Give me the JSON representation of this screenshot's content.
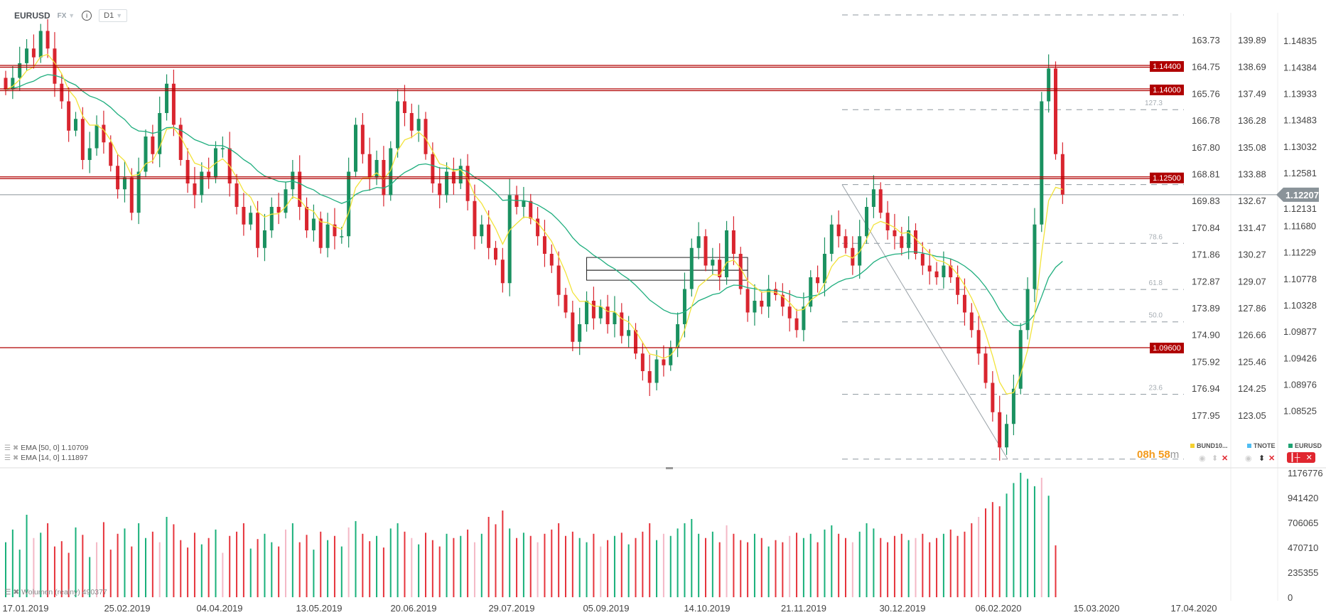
{
  "header": {
    "symbol": "EURUSD",
    "market": "FX",
    "timeframe": "D1"
  },
  "indicators": [
    {
      "label": "EMA [50, 0] 1.10709",
      "color": "#1fae7e",
      "period": 50
    },
    {
      "label": "EMA [14, 0] 1.11897",
      "color": "#f2e33a",
      "period": 14
    }
  ],
  "volume_label": "Wolumen (realny) 490377",
  "countdown": {
    "hours": "08h",
    "minutes": "58",
    "minutes_suffix": "m"
  },
  "legend": [
    {
      "label": "BUND10...",
      "color": "#f5d130"
    },
    {
      "label": "TNOTE",
      "color": "#4fbdf2"
    },
    {
      "label": "EURUSD",
      "color": "#1fa373"
    }
  ],
  "colors": {
    "up": "#1a9160",
    "down": "#d9252f",
    "level": "#b00000",
    "current": "#8a9399"
  },
  "chart_data": {
    "type": "candlestick",
    "symbol": "EURUSD",
    "current_price": "1.12207",
    "levels": [
      {
        "price": 1.144,
        "label": "1.14400",
        "strong": true
      },
      {
        "price": 1.14,
        "label": "1.14000",
        "strong": true
      },
      {
        "price": 1.125,
        "label": "1.12500",
        "strong": true
      },
      {
        "price": 1.096,
        "label": "1.09600",
        "strong": false
      }
    ],
    "fibonacci": {
      "low": 1.077,
      "high": 1.1238,
      "levels": [
        {
          "ratio": 161.8,
          "label": ""
        },
        {
          "ratio": 127.3,
          "label": "127.3"
        },
        {
          "ratio": 100,
          "label": ""
        },
        {
          "ratio": 78.6,
          "label": "78.6"
        },
        {
          "ratio": 61.8,
          "label": "61.8"
        },
        {
          "ratio": 50.0,
          "label": "50.0"
        },
        {
          "ratio": 23.6,
          "label": "23.6"
        },
        {
          "ratio": 0,
          "label": ""
        }
      ]
    },
    "box": {
      "from_index": 83,
      "to_index": 106,
      "top": 1.1092,
      "bottom": 1.1075
    },
    "closes": [
      1.14,
      1.142,
      1.1445,
      1.147,
      1.1455,
      1.15,
      1.147,
      1.141,
      1.138,
      1.133,
      1.135,
      1.128,
      1.13,
      1.134,
      1.131,
      1.127,
      1.123,
      1.125,
      1.119,
      1.126,
      1.132,
      1.129,
      1.136,
      1.141,
      1.134,
      1.128,
      1.124,
      1.122,
      1.126,
      1.125,
      1.13,
      1.13,
      1.124,
      1.12,
      1.117,
      1.119,
      1.113,
      1.116,
      1.12,
      1.119,
      1.123,
      1.126,
      1.12,
      1.116,
      1.118,
      1.113,
      1.117,
      1.115,
      1.115,
      1.126,
      1.134,
      1.129,
      1.125,
      1.128,
      1.122,
      1.13,
      1.138,
      1.136,
      1.133,
      1.135,
      1.129,
      1.124,
      1.122,
      1.126,
      1.124,
      1.127,
      1.121,
      1.115,
      1.117,
      1.113,
      1.111,
      1.107,
      1.122,
      1.12,
      1.121,
      1.118,
      1.115,
      1.112,
      1.11,
      1.105,
      1.102,
      1.097,
      1.1,
      1.104,
      1.101,
      1.103,
      1.1,
      1.102,
      1.098,
      1.099,
      1.095,
      1.092,
      1.09,
      1.094,
      1.093,
      1.096,
      1.1,
      1.106,
      1.113,
      1.115,
      1.11,
      1.111,
      1.108,
      1.116,
      1.112,
      1.106,
      1.102,
      1.104,
      1.103,
      1.106,
      1.105,
      1.103,
      1.101,
      1.099,
      1.103,
      1.108,
      1.107,
      1.112,
      1.117,
      1.115,
      1.113,
      1.11,
      1.115,
      1.12,
      1.123,
      1.119,
      1.116,
      1.115,
      1.113,
      1.116,
      1.112,
      1.11,
      1.109,
      1.108,
      1.11,
      1.108,
      1.105,
      1.102,
      1.099,
      1.095,
      1.09,
      1.085,
      1.079,
      1.083,
      1.089,
      1.099,
      1.106,
      1.117,
      1.138,
      1.1436,
      1.129,
      1.1221
    ],
    "volumes": [
      520000,
      640000,
      450000,
      780000,
      560000,
      610000,
      700000,
      480000,
      530000,
      420000,
      660000,
      590000,
      380000,
      520000,
      710000,
      450000,
      600000,
      650000,
      480000,
      700000,
      560000,
      620000,
      520000,
      760000,
      690000,
      540000,
      470000,
      610000,
      500000,
      560000,
      640000,
      420000,
      580000,
      620000,
      700000,
      460000,
      550000,
      600000,
      520000,
      480000,
      640000,
      700000,
      520000,
      590000,
      450000,
      620000,
      540000,
      580000,
      480000,
      660000,
      720000,
      600000,
      530000,
      580000,
      470000,
      650000,
      700000,
      620000,
      560000,
      500000,
      610000,
      540000,
      480000,
      600000,
      560000,
      580000,
      640000,
      520000,
      600000,
      760000,
      690000,
      820000,
      650000,
      560000,
      610000,
      580000,
      520000,
      600000,
      640000,
      700000,
      580000,
      620000,
      560000,
      520000,
      600000,
      480000,
      540000,
      580000,
      610000,
      500000,
      560000,
      620000,
      700000,
      540000,
      600000,
      580000,
      650000,
      700000,
      740000,
      600000,
      560000,
      620000,
      520000,
      680000,
      600000,
      540000,
      520000,
      600000,
      560000,
      480000,
      540000,
      520000,
      580000,
      610000,
      560000,
      600000,
      520000,
      640000,
      680000,
      600000,
      560000,
      520000,
      620000,
      700000,
      650000,
      560000,
      520000,
      580000,
      600000,
      540000,
      560000,
      600000,
      520000,
      560000,
      600000,
      640000,
      580000,
      620000,
      700000,
      760000,
      840000,
      900000,
      860000,
      980000,
      1080000,
      1176776,
      1120000,
      1050000,
      1130000,
      960000,
      490377
    ],
    "axis_left": [
      "163.73",
      "164.75",
      "165.76",
      "166.78",
      "167.80",
      "168.81",
      "169.83",
      "170.84",
      "171.86",
      "172.87",
      "173.89",
      "174.90",
      "175.92",
      "176.94",
      "177.95"
    ],
    "axis_mid": [
      "139.89",
      "138.69",
      "137.49",
      "136.28",
      "135.08",
      "133.88",
      "132.67",
      "131.47",
      "130.27",
      "129.07",
      "127.86",
      "126.66",
      "125.46",
      "124.25",
      "123.05"
    ],
    "axis_price": [
      "1.14835",
      "1.14384",
      "1.13933",
      "1.13483",
      "1.13032",
      "1.12581",
      "1.12131",
      "1.11680",
      "1.11229",
      "1.10778",
      "1.10328",
      "1.09877",
      "1.09426",
      "1.08976",
      "1.08525"
    ],
    "axis_volume": [
      "1176776",
      "941420",
      "706065",
      "470710",
      "235355",
      "0"
    ],
    "dates": [
      "17.01.2019",
      "25.02.2019",
      "04.04.2019",
      "13.05.2019",
      "20.06.2019",
      "29.07.2019",
      "05.09.2019",
      "14.10.2019",
      "21.11.2019",
      "30.12.2019",
      "06.02.2020",
      "15.03.2020",
      "17.04.2020"
    ]
  }
}
